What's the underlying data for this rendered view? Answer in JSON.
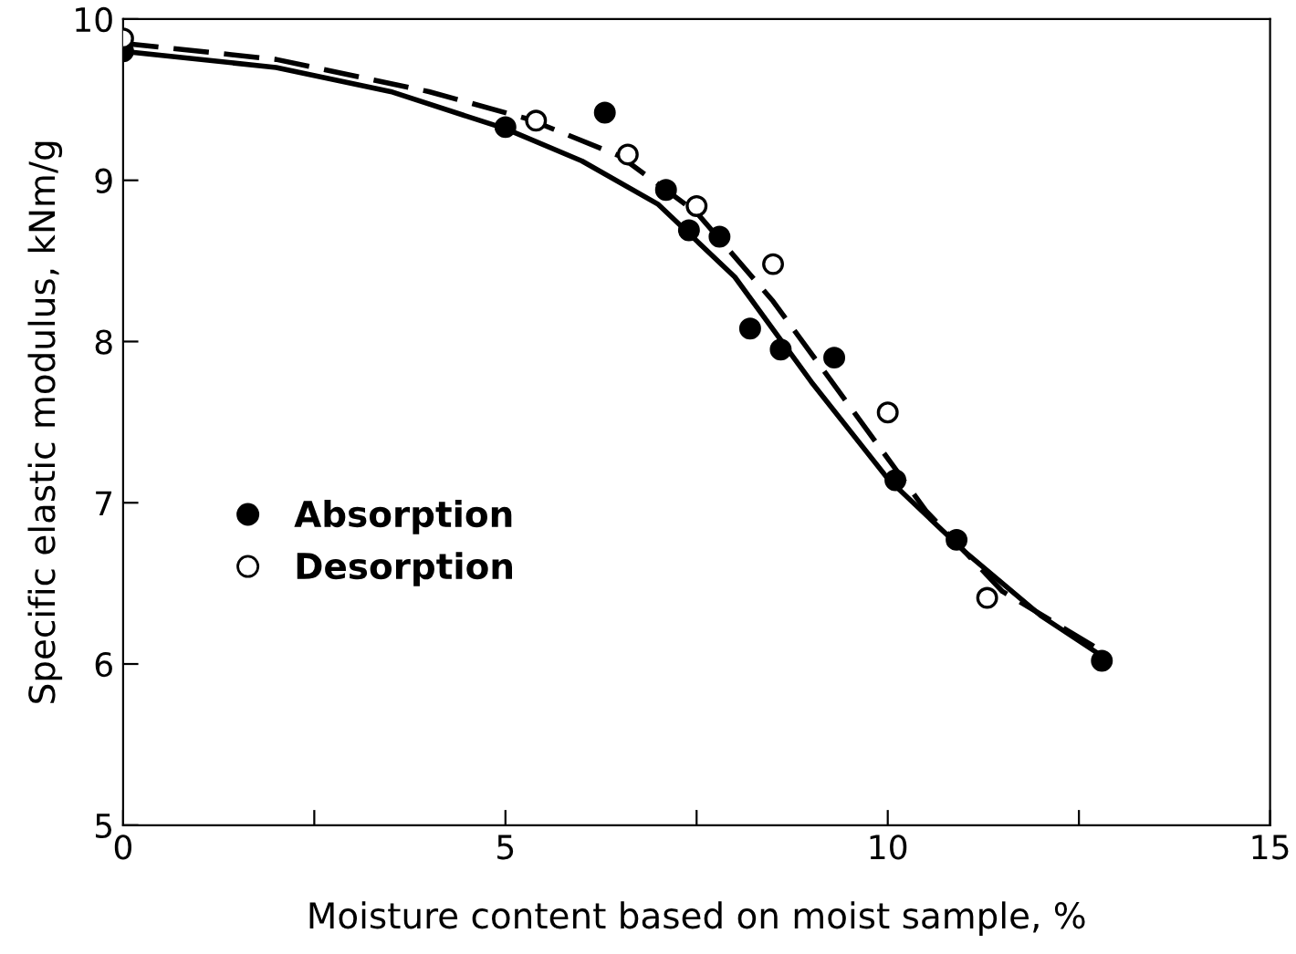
{
  "chart_data": {
    "type": "scatter",
    "xlabel": "Moisture content based on moist sample, %",
    "ylabel": "Specific elastic modulus, kNm/g",
    "xlim": [
      0,
      15
    ],
    "ylim": [
      5,
      10
    ],
    "xticks": [
      0,
      {
        "value": 2.5,
        "label": null
      },
      5,
      {
        "value": 7.5,
        "label": null
      },
      10,
      {
        "value": 12.5,
        "label": null
      },
      15
    ],
    "yticks": [
      5,
      6,
      7,
      8,
      9,
      10
    ],
    "grid": false,
    "legend": "left",
    "marker": "circle",
    "series": [
      {
        "name": "Absorption",
        "color": "#000000",
        "x": [
          0,
          5.0,
          6.3,
          7.1,
          7.4,
          7.8,
          8.2,
          8.6,
          9.3,
          10.1,
          10.9,
          12.8
        ],
        "values": [
          9.8,
          9.33,
          9.42,
          8.94,
          8.69,
          8.65,
          8.08,
          7.95,
          7.9,
          7.14,
          6.77,
          6.02
        ]
      },
      {
        "name": "Desorption",
        "color": "#ffffff",
        "x": [
          0,
          5.4,
          6.6,
          7.5,
          8.5,
          10.0,
          11.3
        ],
        "values": [
          9.88,
          9.37,
          9.16,
          8.84,
          8.48,
          7.56,
          6.41
        ]
      },
      {
        "type": "line",
        "color": "#000000",
        "line_style": "solid",
        "marker": "none",
        "x": [
          0,
          2,
          3.5,
          5,
          6,
          7,
          8,
          9,
          10,
          11,
          12,
          12.8
        ],
        "values": [
          9.8,
          9.7,
          9.55,
          9.32,
          9.12,
          8.85,
          8.4,
          7.75,
          7.15,
          6.7,
          6.3,
          6.05
        ]
      },
      {
        "type": "line",
        "color": "#000000",
        "line_style": "dashed",
        "marker": "none",
        "x": [
          0,
          2,
          4,
          5.3,
          6.5,
          7.5,
          8.5,
          9.5,
          10.5,
          11.5,
          12.8
        ],
        "values": [
          9.85,
          9.75,
          9.55,
          9.38,
          9.15,
          8.8,
          8.25,
          7.6,
          6.95,
          6.45,
          6.08
        ]
      }
    ]
  }
}
